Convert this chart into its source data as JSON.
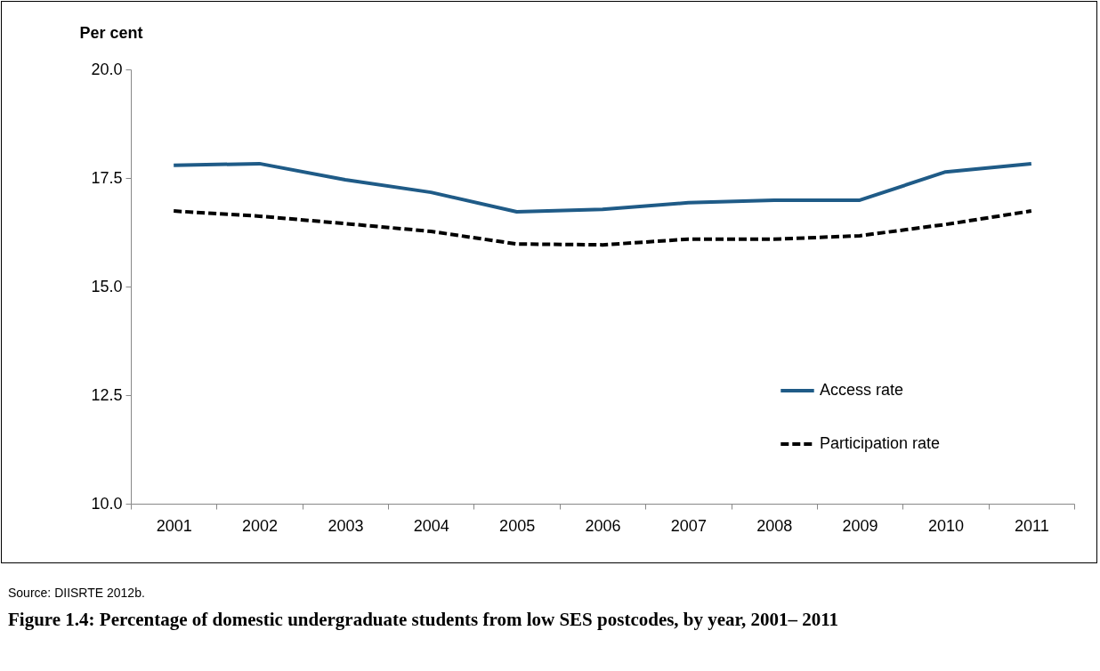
{
  "chart_data": {
    "type": "line",
    "title": "Figure 1.4: Percentage of domestic undergraduate students from low SES postcodes, by year, 2001– 2011",
    "ylabel": "Per cent",
    "categories": [
      "2001",
      "2002",
      "2003",
      "2004",
      "2005",
      "2006",
      "2007",
      "2008",
      "2009",
      "2010",
      "2011"
    ],
    "series": [
      {
        "name": "Access rate",
        "color": "#1f5b87",
        "line_style": "solid",
        "values": [
          17.79,
          17.83,
          17.46,
          17.17,
          16.72,
          16.78,
          16.93,
          16.99,
          16.99,
          17.64,
          17.83
        ]
      },
      {
        "name": "Participation rate",
        "color": "#000000",
        "line_style": "dashed",
        "values": [
          16.74,
          16.62,
          16.45,
          16.27,
          15.98,
          15.96,
          16.09,
          16.09,
          16.17,
          16.43,
          16.74
        ]
      }
    ],
    "ylim": [
      10,
      20
    ],
    "yticks": [
      {
        "value": 10,
        "label": "10.0"
      },
      {
        "value": 12.5,
        "label": "12.5"
      },
      {
        "value": 15,
        "label": "15.0"
      },
      {
        "value": 17.5,
        "label": "17.5"
      },
      {
        "value": 20,
        "label": "20.0"
      }
    ],
    "grid": false,
    "legend": "right",
    "marker": "none",
    "annotations": [
      "Source: DIISRTE 2012b."
    ]
  }
}
